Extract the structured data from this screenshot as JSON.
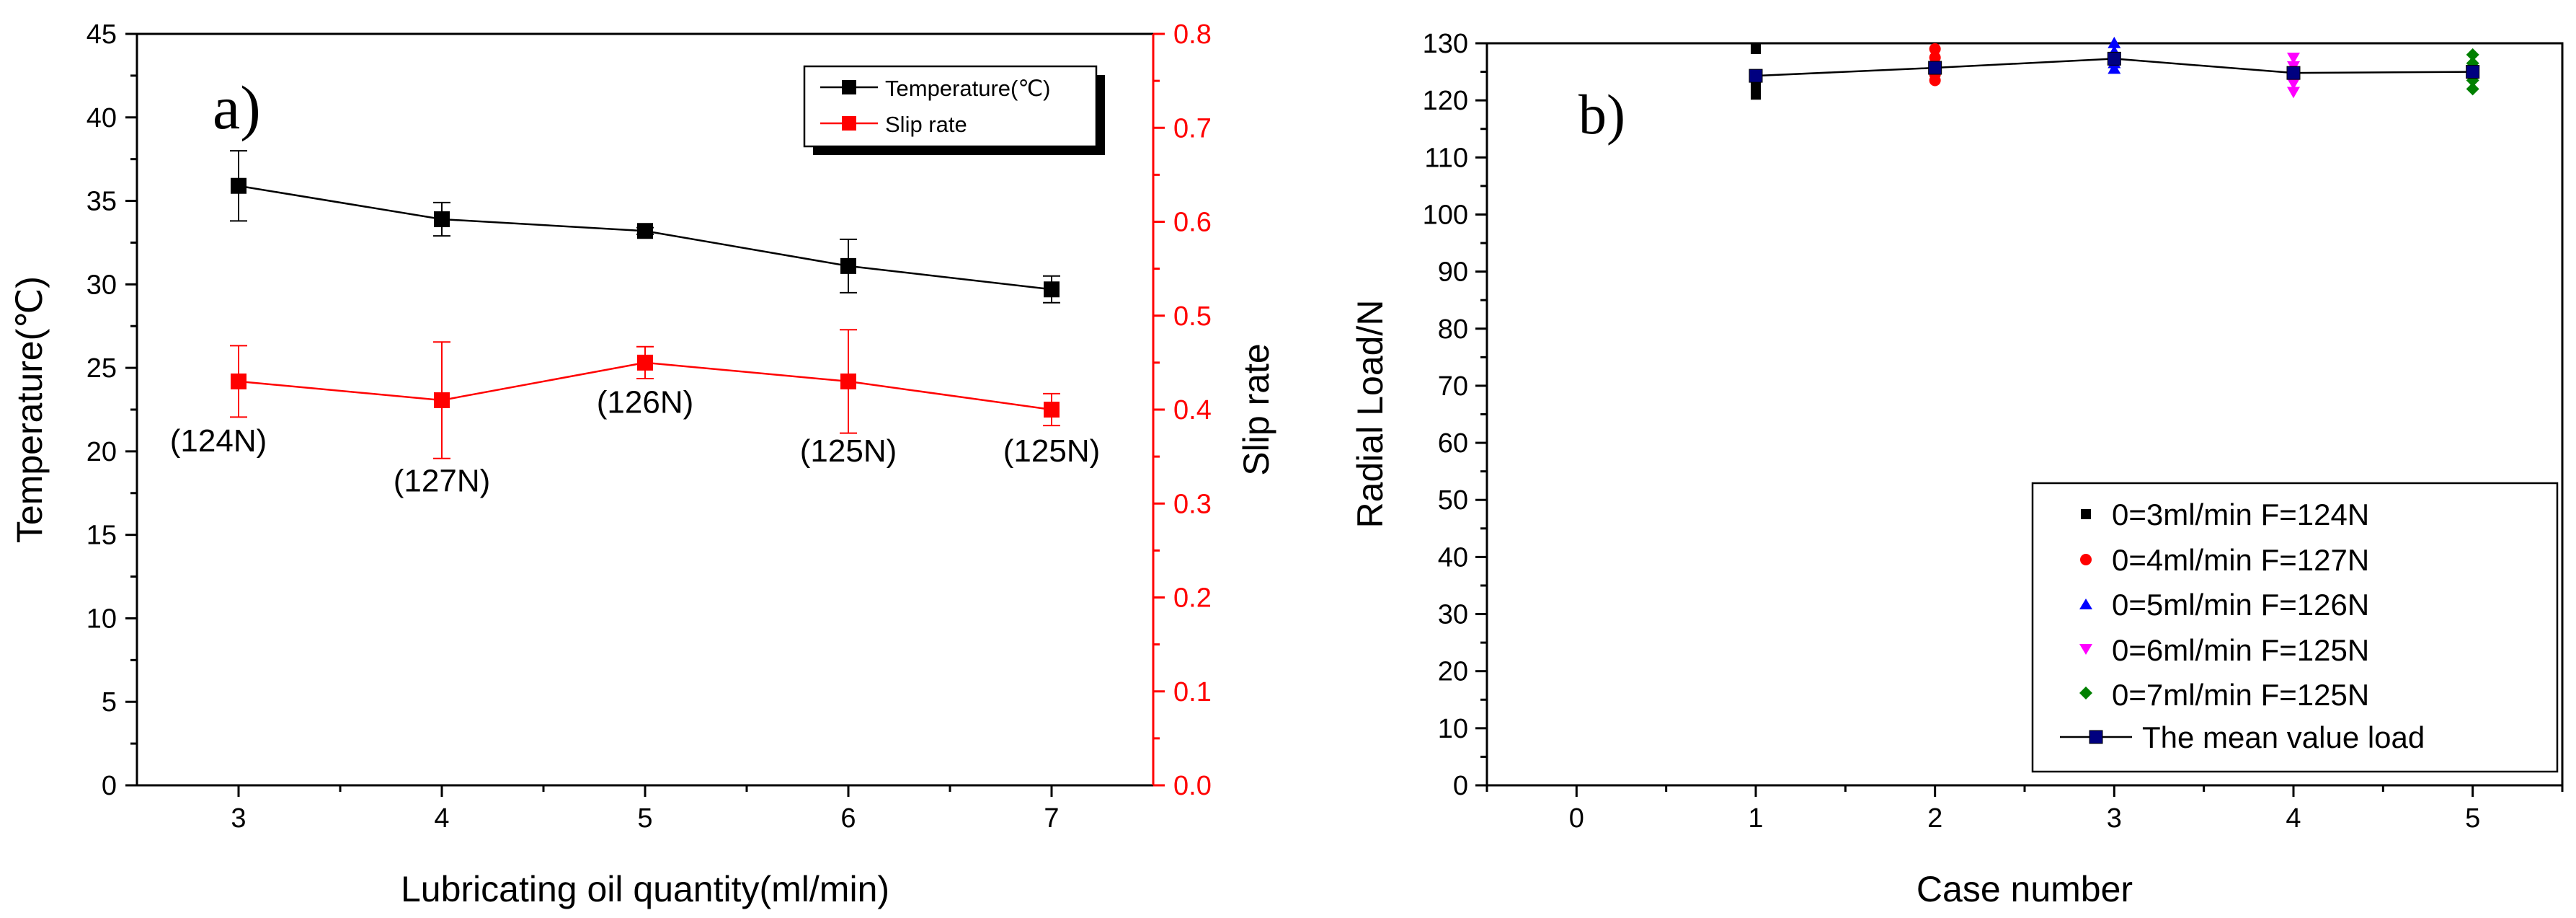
{
  "colors": {
    "axis": "#000000",
    "temp": "#000000",
    "slip": "#ff0000",
    "case1": "#000000",
    "case2": "#ff0000",
    "case3": "#0000ff",
    "case4": "#ff00ff",
    "case5": "#008000",
    "mean": "#000080"
  },
  "chart_data": [
    {
      "type": "line",
      "panel_label": "a)",
      "xlabel": "Lubricating oil quantity(ml/min)",
      "ylabel": "Temperature(℃)",
      "y2label": "Slip rate",
      "xlim": [
        2.5,
        7.5
      ],
      "ylim": [
        0,
        45
      ],
      "y2lim": [
        0,
        0.8
      ],
      "x": [
        3,
        4,
        5,
        6,
        7
      ],
      "x_ticks": [
        "3",
        "4",
        "5",
        "6",
        "7"
      ],
      "y_ticks": [
        "0",
        "5",
        "10",
        "15",
        "20",
        "25",
        "30",
        "35",
        "40",
        "45"
      ],
      "y2_ticks": [
        "0.0",
        "0.1",
        "0.2",
        "0.3",
        "0.4",
        "0.5",
        "0.6",
        "0.7",
        "0.8"
      ],
      "series": [
        {
          "name": "Temperature(℃)",
          "axis": "left",
          "color_key": "temp",
          "values": [
            35.9,
            33.9,
            33.2,
            31.1,
            29.7
          ],
          "errors": [
            2.1,
            1.0,
            0.2,
            1.6,
            0.8
          ]
        },
        {
          "name": "Slip rate",
          "axis": "right",
          "color_key": "slip",
          "values": [
            0.43,
            0.41,
            0.45,
            0.43,
            0.4
          ],
          "errors": [
            0.038,
            0.062,
            0.017,
            0.055,
            0.017
          ]
        }
      ],
      "annotations": [
        "(124N)",
        "(127N)",
        "(126N)",
        "(125N)",
        "(125N)"
      ],
      "legend_position": "top-right"
    },
    {
      "type": "scatter",
      "panel_label": "b)",
      "xlabel": "Case number",
      "ylabel": "Radial Load/N",
      "xlim": [
        -0.5,
        5.5
      ],
      "ylim": [
        0,
        130
      ],
      "x_ticks": [
        "0",
        "1",
        "2",
        "3",
        "4",
        "5"
      ],
      "y_ticks": [
        "0",
        "10",
        "20",
        "30",
        "40",
        "50",
        "60",
        "70",
        "80",
        "90",
        "100",
        "110",
        "120",
        "130"
      ],
      "series": [
        {
          "name": "0=3ml/min F=124N",
          "marker": "square",
          "color_key": "case1",
          "x": [
            1,
            1,
            1,
            1
          ],
          "y": [
            129,
            124,
            122.5,
            121
          ]
        },
        {
          "name": "0=4ml/min F=127N",
          "marker": "circle",
          "color_key": "case2",
          "x": [
            2,
            2,
            2,
            2
          ],
          "y": [
            129,
            127.5,
            124.5,
            123.5
          ]
        },
        {
          "name": "0=5ml/min F=126N",
          "marker": "triangle-up",
          "color_key": "case3",
          "x": [
            3,
            3,
            3,
            3
          ],
          "y": [
            130,
            128.5,
            126.5,
            125.5
          ]
        },
        {
          "name": "0=6ml/min F=125N",
          "marker": "triangle-down",
          "color_key": "case4",
          "x": [
            4,
            4,
            4,
            4,
            4
          ],
          "y": [
            127.5,
            126,
            124.5,
            123,
            121.5
          ]
        },
        {
          "name": "0=7ml/min F=125N",
          "marker": "diamond",
          "color_key": "case5",
          "x": [
            5,
            5,
            5,
            5,
            5
          ],
          "y": [
            128,
            126.5,
            125,
            123.5,
            122
          ]
        },
        {
          "name": "The mean value load",
          "marker": "line-square",
          "color_key": "mean",
          "x": [
            1,
            2,
            3,
            4,
            5
          ],
          "y": [
            124.3,
            125.7,
            127.3,
            124.8,
            125.0
          ]
        }
      ],
      "legend_position": "bottom-right"
    }
  ]
}
